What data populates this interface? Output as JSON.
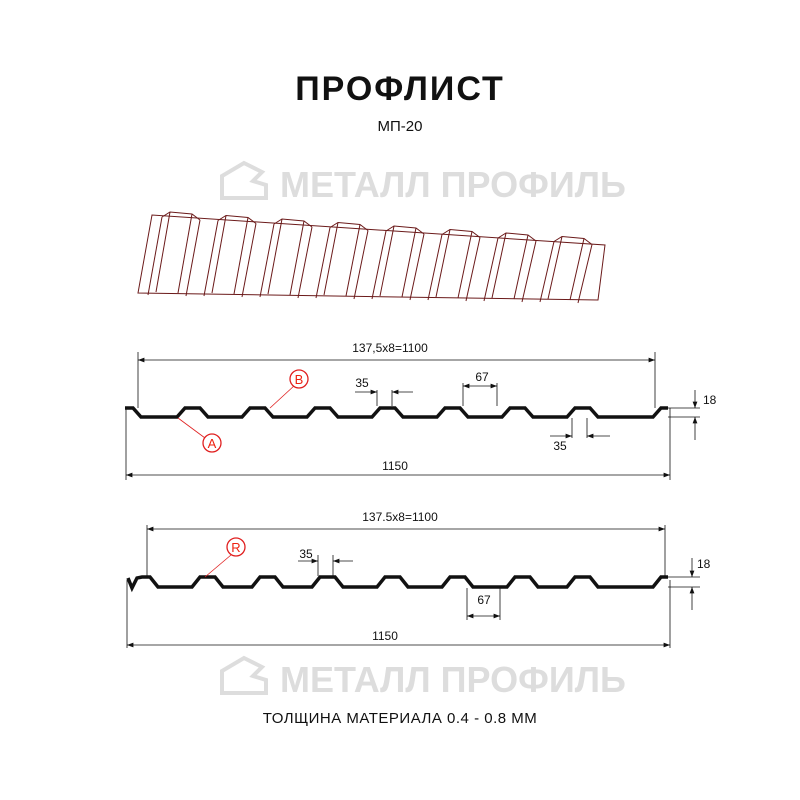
{
  "header": {
    "title": "ПРОФЛИСТ",
    "subtitle": "МП-20"
  },
  "watermark": {
    "text": "МЕТАЛЛ ПРОФИЛЬ"
  },
  "profile_a": {
    "pitch_label": "137,5x8=1100",
    "top_width": "35",
    "bottom_width": "67",
    "height": "18",
    "bottom_rib": "35",
    "total_width": "1150",
    "callouts": [
      "A",
      "B"
    ]
  },
  "profile_r": {
    "pitch_label": "137.5x8=1100",
    "top_width": "35",
    "bottom_width": "67",
    "height": "18",
    "total_width": "1150",
    "callouts": [
      "R"
    ]
  },
  "footer": {
    "thickness": "ТОЛЩИНА МАТЕРИАЛА 0.4 - 0.8 ММ"
  },
  "colors": {
    "callout": "#e02020",
    "profile": "#111111",
    "watermark": "#dddddd"
  }
}
